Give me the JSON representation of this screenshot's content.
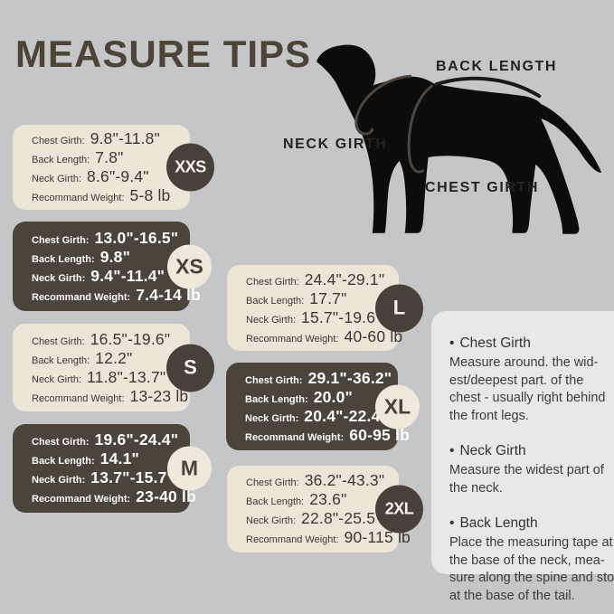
{
  "title": "MEASURE TIPS",
  "colors": {
    "background": "#c6c5c7",
    "title_text": "#4d4438",
    "card_cream": "#ece6d9",
    "card_dark": "#4b443b",
    "badge_dark": "#48413a",
    "badge_cream": "#efe9dc",
    "tips_panel": "#e9e8e7",
    "dog_silhouette": "#0c0c0c"
  },
  "diagram": {
    "back_length_label": "BACK LENGTH",
    "neck_girth_label": "NECK GIRTH",
    "chest_girth_label": "CHEST GIRTH"
  },
  "size_cards": [
    {
      "size": "XXS",
      "theme": "cream",
      "rows": [
        {
          "label": "Chest Girth:",
          "value": "9.8\"-11.8\""
        },
        {
          "label": "Back Length:",
          "value": "7.8\""
        },
        {
          "label": "Neck Girth:",
          "value": "8.6\"-9.4\""
        },
        {
          "label": "Recommand Weight:",
          "value": "5-8 lb"
        }
      ]
    },
    {
      "size": "XS",
      "theme": "dark",
      "rows": [
        {
          "label": "Chest Girth:",
          "value": "13.0\"-16.5\""
        },
        {
          "label": "Back Length:",
          "value": "9.8\""
        },
        {
          "label": "Neck Girth:",
          "value": "9.4\"-11.4\""
        },
        {
          "label": "Recommand Weight:",
          "value": "7.4-14 lb"
        }
      ]
    },
    {
      "size": "S",
      "theme": "cream",
      "rows": [
        {
          "label": "Chest Girth:",
          "value": "16.5\"-19.6\""
        },
        {
          "label": "Back Length:",
          "value": "12.2\""
        },
        {
          "label": "Neck Girth:",
          "value": "11.8\"-13.7\""
        },
        {
          "label": "Recommand Weight:",
          "value": "13-23 lb"
        }
      ]
    },
    {
      "size": "M",
      "theme": "dark",
      "rows": [
        {
          "label": "Chest Girth:",
          "value": "19.6\"-24.4\""
        },
        {
          "label": "Back Length:",
          "value": "14.1\""
        },
        {
          "label": "Neck Girth:",
          "value": "13.7\"-15.7\""
        },
        {
          "label": "Recommand Weight:",
          "value": "23-40 lb"
        }
      ]
    },
    {
      "size": "L",
      "theme": "cream",
      "rows": [
        {
          "label": "Chest Girth:",
          "value": "24.4\"-29.1\""
        },
        {
          "label": "Back Length:",
          "value": "17.7\""
        },
        {
          "label": "Neck Girth:",
          "value": "15.7\"-19.6\""
        },
        {
          "label": "Recommand Weight:",
          "value": "40-60 lb"
        }
      ]
    },
    {
      "size": "XL",
      "theme": "dark",
      "rows": [
        {
          "label": "Chest Girth:",
          "value": "29.1\"-36.2\""
        },
        {
          "label": "Back Length:",
          "value": "20.0\""
        },
        {
          "label": "Neck Girth:",
          "value": "20.4\"-22.4\""
        },
        {
          "label": "Recommand Weight:",
          "value": "60-95 lb"
        }
      ]
    },
    {
      "size": "2XL",
      "theme": "cream",
      "rows": [
        {
          "label": "Chest Girth:",
          "value": "36.2\"-43.3\""
        },
        {
          "label": "Back Length:",
          "value": "23.6\""
        },
        {
          "label": "Neck Girth:",
          "value": "22.8\"-25.5\""
        },
        {
          "label": "Recommand Weight:",
          "value": "90-115 lb"
        }
      ]
    }
  ],
  "tips_panel": {
    "bullet": "•",
    "tips": [
      {
        "heading": "Chest Girth",
        "lines": [
          "Measure around. the wid-",
          "est/deepest part. of the",
          "chest - usually right behind",
          "the front legs."
        ]
      },
      {
        "heading": "Neck Girth",
        "lines": [
          "Measure the widest part of",
          "the neck."
        ]
      },
      {
        "heading": "Back Length",
        "lines": [
          "Place the measuring tape at",
          "the base of the neck, mea-",
          "sure along the spine and stop",
          "at the base of the tail."
        ]
      }
    ]
  }
}
